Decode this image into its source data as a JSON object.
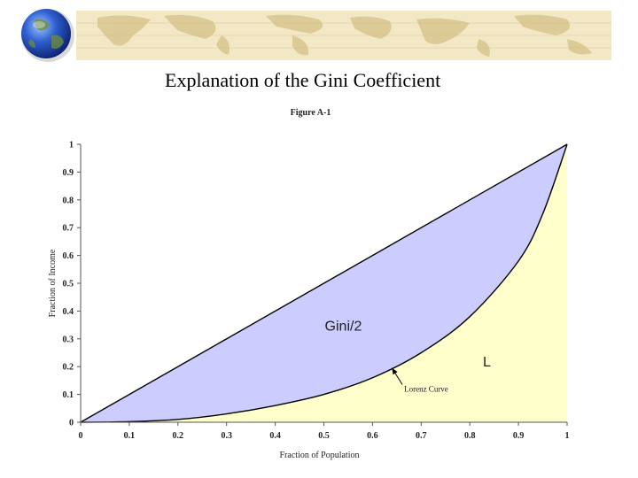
{
  "slide": {
    "title": "Explanation of the Gini Coefficient",
    "banner_icon": "globe-icon",
    "banner_pattern": "world-map-strip",
    "colors": {
      "banner_bg": "#f2e8c6",
      "map_tone": "#d9c78e"
    }
  },
  "chart_data": {
    "type": "area",
    "title": "Figure A-1",
    "xlabel": "Fraction of Population",
    "ylabel": "Fraction of Income",
    "xlim": [
      0,
      1
    ],
    "ylim": [
      0,
      1
    ],
    "xticks": [
      "0",
      "0.1",
      "0.2",
      "0.3",
      "0.4",
      "0.5",
      "0.6",
      "0.7",
      "0.8",
      "0.9",
      "1"
    ],
    "yticks": [
      "0",
      "0.1",
      "0.2",
      "0.3",
      "0.4",
      "0.5",
      "0.6",
      "0.7",
      "0.8",
      "0.9",
      "1"
    ],
    "series": [
      {
        "key": "equality",
        "x": [
          0,
          1
        ],
        "y": [
          0,
          1
        ]
      },
      {
        "key": "lorenz",
        "x": [
          0,
          0.1,
          0.2,
          0.3,
          0.4,
          0.5,
          0.6,
          0.7,
          0.8,
          0.9,
          0.95,
          1
        ],
        "y": [
          0,
          0.002,
          0.01,
          0.03,
          0.06,
          0.1,
          0.16,
          0.25,
          0.38,
          0.58,
          0.75,
          1
        ]
      }
    ],
    "regions": [
      {
        "label": "Gini/2",
        "color": "#ccccff",
        "between": [
          "equality",
          "lorenz"
        ],
        "label_at": [
          0.54,
          0.33
        ]
      },
      {
        "label": "L",
        "color": "#ffffcc",
        "between": [
          "lorenz",
          "x-axis"
        ],
        "label_at": [
          0.835,
          0.2
        ]
      }
    ],
    "annotations": [
      {
        "text": "Lorenz Curve",
        "text_at": [
          0.665,
          0.11
        ],
        "arrow_to": [
          0.64,
          0.195
        ]
      }
    ],
    "grid": false,
    "legend": "none"
  }
}
